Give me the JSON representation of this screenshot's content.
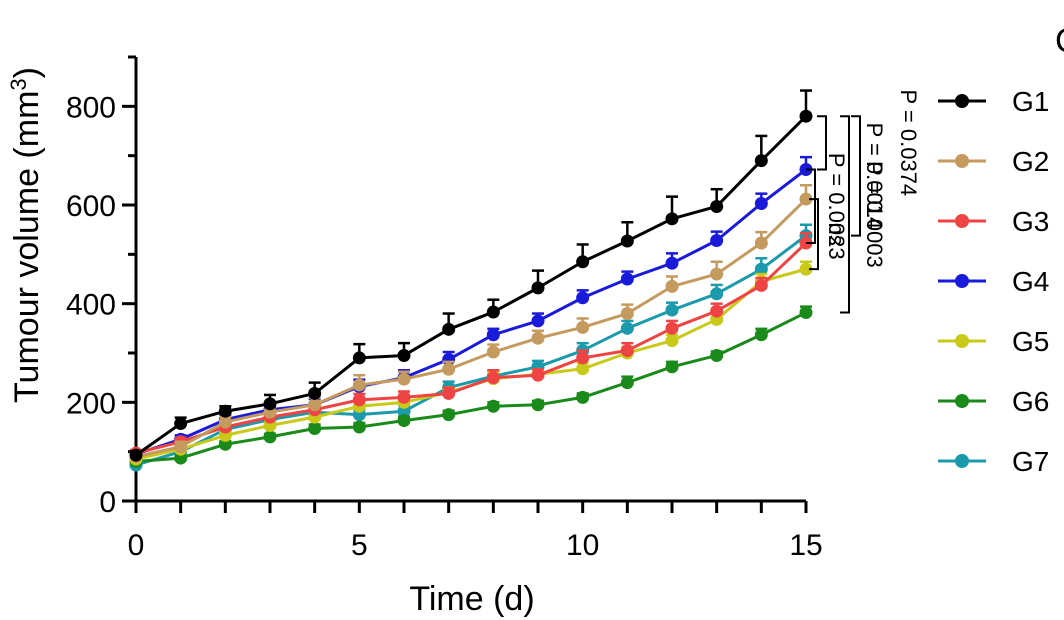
{
  "chart_data": {
    "type": "line",
    "title": "",
    "xlabel": "Time (d)",
    "ylabel": "Tumour volume (mm3)",
    "ylabel_main": "Tumour volume (mm",
    "ylabel_sup": "3",
    "ylabel_close": ")",
    "xlim": [
      0,
      15
    ],
    "ylim": [
      0,
      900
    ],
    "xticks": [
      0,
      5,
      10,
      15
    ],
    "xtick_labels": [
      "0",
      "5",
      "10",
      "15"
    ],
    "yticks": [
      0,
      200,
      400,
      600,
      800
    ],
    "ytick_labels": [
      "0",
      "200",
      "400",
      "600",
      "800"
    ],
    "x": [
      0,
      1,
      2,
      3,
      4,
      5,
      6,
      7,
      8,
      9,
      10,
      11,
      12,
      13,
      14,
      15
    ],
    "legend_position": "right",
    "cropped_corner_text": "C",
    "series": [
      {
        "name": "G1",
        "color": "#000000",
        "values": [
          93,
          157,
          182,
          197,
          218,
          290,
          295,
          348,
          383,
          432,
          485,
          527,
          572,
          597,
          690,
          780
        ],
        "errors": [
          8,
          12,
          10,
          18,
          22,
          28,
          25,
          32,
          25,
          35,
          35,
          38,
          45,
          35,
          50,
          52
        ]
      },
      {
        "name": "G2",
        "color": "#c49a5e",
        "values": [
          90,
          110,
          160,
          180,
          195,
          235,
          247,
          267,
          302,
          330,
          352,
          380,
          435,
          460,
          523,
          612
        ],
        "errors": [
          6,
          10,
          10,
          12,
          14,
          20,
          15,
          15,
          15,
          15,
          18,
          18,
          20,
          25,
          22,
          28
        ]
      },
      {
        "name": "G3",
        "color": "#ef4444",
        "values": [
          97,
          120,
          150,
          170,
          185,
          205,
          210,
          218,
          250,
          255,
          290,
          305,
          350,
          385,
          437,
          523
        ],
        "errors": [
          6,
          8,
          10,
          10,
          12,
          12,
          12,
          12,
          15,
          12,
          15,
          15,
          15,
          15,
          15,
          20
        ]
      },
      {
        "name": "G4",
        "color": "#1a1adb",
        "values": [
          95,
          125,
          165,
          185,
          195,
          232,
          250,
          287,
          337,
          365,
          412,
          450,
          482,
          528,
          603,
          672
        ],
        "errors": [
          6,
          8,
          10,
          10,
          12,
          14,
          15,
          15,
          12,
          15,
          15,
          15,
          20,
          18,
          20,
          25
        ]
      },
      {
        "name": "G5",
        "color": "#c9c91a",
        "values": [
          85,
          105,
          133,
          153,
          170,
          192,
          200,
          220,
          248,
          257,
          268,
          300,
          325,
          368,
          445,
          470
        ],
        "errors": [
          5,
          6,
          8,
          8,
          10,
          10,
          10,
          10,
          12,
          10,
          12,
          12,
          12,
          15,
          15,
          15
        ]
      },
      {
        "name": "G6",
        "color": "#1a8a1a",
        "values": [
          80,
          87,
          115,
          130,
          147,
          150,
          163,
          175,
          192,
          195,
          210,
          240,
          272,
          295,
          337,
          382
        ],
        "errors": [
          5,
          5,
          6,
          6,
          8,
          8,
          8,
          8,
          8,
          8,
          8,
          12,
          10,
          8,
          12,
          12
        ]
      },
      {
        "name": "G7",
        "color": "#1a9aab",
        "values": [
          73,
          100,
          145,
          165,
          180,
          175,
          182,
          230,
          253,
          272,
          305,
          350,
          387,
          420,
          470,
          538
        ],
        "errors": [
          5,
          8,
          8,
          10,
          10,
          10,
          12,
          12,
          12,
          12,
          15,
          15,
          15,
          18,
          22,
          22
        ]
      }
    ],
    "annotations": [
      {
        "text": "P = 0.0374",
        "from": "G1",
        "to": "G4"
      },
      {
        "text": "P = 0.0014",
        "from": "G1",
        "to": "G7"
      },
      {
        "text": "P = 0.0003",
        "from": "G1",
        "to": "G6"
      },
      {
        "text": "P = 0.0023",
        "from": "G4",
        "to": "G3"
      },
      {
        "text": "ns",
        "from": "G2",
        "to": "G5"
      }
    ]
  }
}
